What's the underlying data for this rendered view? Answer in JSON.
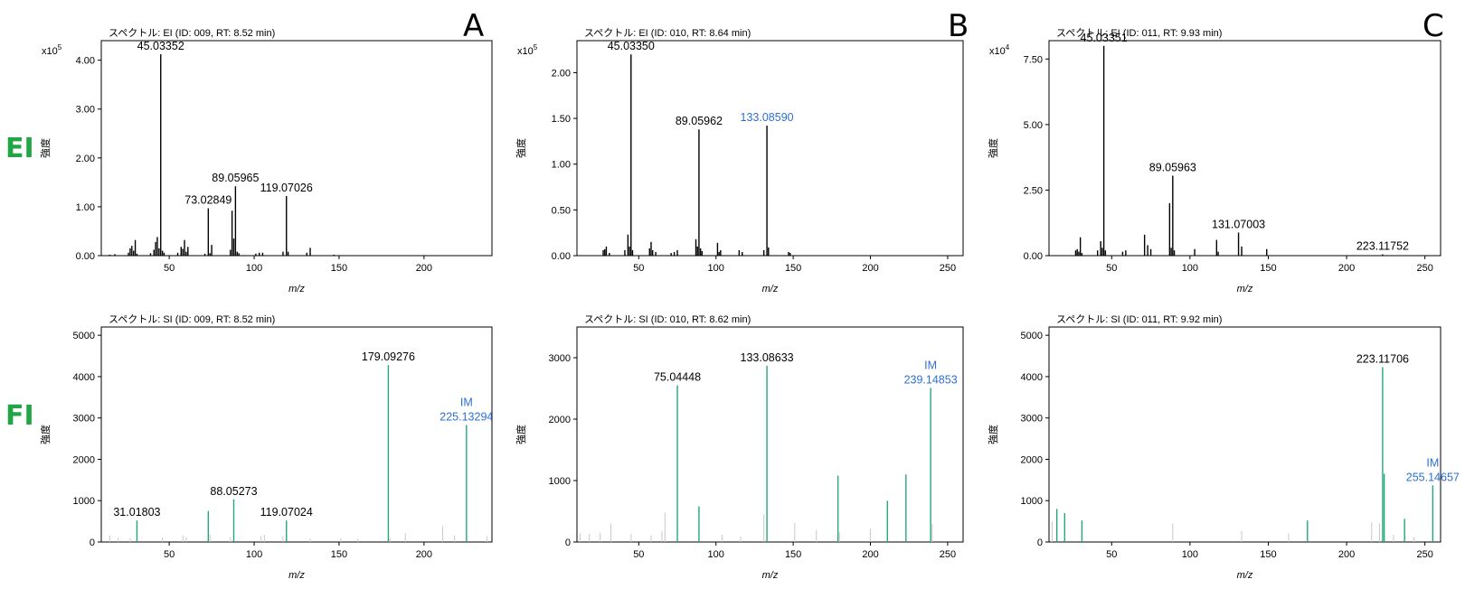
{
  "row_labels": [
    "EI",
    "FI"
  ],
  "panel_letters": [
    "A",
    "B",
    "C"
  ],
  "colors": {
    "ei_stick": "#000000",
    "fi_stick": "#26a77a",
    "minor_stick": "#c8c8c8",
    "im_label": "#2e6fd1",
    "row_label": "#22a645"
  },
  "chart_data": [
    {
      "type": "bar",
      "title": "スペクトル: EI (ID: 009, RT: 8.52 min)",
      "xlabel": "m/z",
      "ylabel": "強度",
      "multiplier": "x10",
      "multiplier_exp": "5",
      "xlim": [
        10,
        240
      ],
      "ylim": [
        0,
        4.4
      ],
      "xticks": [
        50,
        100,
        150,
        200
      ],
      "xtick_labels": [
        "50",
        "100",
        "150",
        "200"
      ],
      "yticks": [
        0,
        1,
        2,
        3,
        4
      ],
      "ytick_labels": [
        "0.00",
        "1.00",
        "2.00",
        "3.00",
        "4.00"
      ],
      "stick_color": "ei",
      "sticks": [
        [
          15,
          0.02
        ],
        [
          18,
          0.03
        ],
        [
          26,
          0.06
        ],
        [
          27,
          0.15
        ],
        [
          28,
          0.2
        ],
        [
          29,
          0.1
        ],
        [
          30,
          0.32
        ],
        [
          31,
          0.04
        ],
        [
          39,
          0.05
        ],
        [
          41,
          0.12
        ],
        [
          42,
          0.28
        ],
        [
          43,
          0.38
        ],
        [
          44,
          0.15
        ],
        [
          45,
          4.12
        ],
        [
          46,
          0.1
        ],
        [
          47,
          0.06
        ],
        [
          55,
          0.06
        ],
        [
          57,
          0.18
        ],
        [
          58,
          0.14
        ],
        [
          59,
          0.32
        ],
        [
          60,
          0.08
        ],
        [
          61,
          0.18
        ],
        [
          71,
          0.04
        ],
        [
          73,
          0.97
        ],
        [
          74,
          0.05
        ],
        [
          75,
          0.22
        ],
        [
          86,
          0.12
        ],
        [
          87,
          0.92
        ],
        [
          88,
          0.35
        ],
        [
          89,
          1.42
        ],
        [
          90,
          0.08
        ],
        [
          91,
          0.05
        ],
        [
          101,
          0.04
        ],
        [
          103,
          0.06
        ],
        [
          105,
          0.06
        ],
        [
          117,
          0.08
        ],
        [
          119,
          1.22
        ],
        [
          120,
          0.08
        ],
        [
          131,
          0.06
        ],
        [
          133,
          0.16
        ],
        [
          147,
          0.02
        ]
      ],
      "annotations": [
        {
          "x": 45,
          "y": 4.12,
          "text": "45.03352"
        },
        {
          "x": 73,
          "y": 0.97,
          "text": "73.02849"
        },
        {
          "x": 89,
          "y": 1.42,
          "text": "89.05965"
        },
        {
          "x": 119,
          "y": 1.22,
          "text": "119.07026"
        }
      ]
    },
    {
      "type": "bar",
      "title": "スペクトル: EI (ID: 010, RT: 8.64 min)",
      "xlabel": "m/z",
      "ylabel": "強度",
      "multiplier": "x10",
      "multiplier_exp": "5",
      "xlim": [
        10,
        260
      ],
      "ylim": [
        0,
        2.35
      ],
      "xticks": [
        50,
        100,
        150,
        200,
        250
      ],
      "xtick_labels": [
        "50",
        "100",
        "150",
        "200",
        "250"
      ],
      "yticks": [
        0,
        0.5,
        1,
        1.5,
        2
      ],
      "ytick_labels": [
        "0.00",
        "0.50",
        "1.00",
        "1.50",
        "2.00"
      ],
      "stick_color": "ei",
      "sticks": [
        [
          27,
          0.06
        ],
        [
          28,
          0.07
        ],
        [
          29,
          0.1
        ],
        [
          31,
          0.03
        ],
        [
          41,
          0.06
        ],
        [
          43,
          0.23
        ],
        [
          44,
          0.1
        ],
        [
          45,
          2.2
        ],
        [
          46,
          0.06
        ],
        [
          57,
          0.08
        ],
        [
          58,
          0.15
        ],
        [
          59,
          0.06
        ],
        [
          61,
          0.04
        ],
        [
          71,
          0.03
        ],
        [
          73,
          0.04
        ],
        [
          75,
          0.06
        ],
        [
          87,
          0.18
        ],
        [
          88,
          0.1
        ],
        [
          89,
          1.38
        ],
        [
          90,
          0.08
        ],
        [
          91,
          0.05
        ],
        [
          101,
          0.14
        ],
        [
          102,
          0.04
        ],
        [
          103,
          0.06
        ],
        [
          115,
          0.06
        ],
        [
          117,
          0.04
        ],
        [
          131,
          0.06
        ],
        [
          133,
          1.42
        ],
        [
          134,
          0.09
        ],
        [
          147,
          0.04
        ],
        [
          148,
          0.03
        ]
      ],
      "annotations": [
        {
          "x": 45,
          "y": 2.2,
          "text": "45.03350"
        },
        {
          "x": 89,
          "y": 1.38,
          "text": "89.05962"
        },
        {
          "x": 133,
          "y": 1.42,
          "text": "133.08590",
          "highlight": true
        }
      ]
    },
    {
      "type": "bar",
      "title": "スペクトル: EI (ID: 011, RT: 9.93 min)",
      "xlabel": "m/z",
      "ylabel": "強度",
      "multiplier": "x10",
      "multiplier_exp": "4",
      "xlim": [
        10,
        260
      ],
      "ylim": [
        0,
        8.2
      ],
      "xticks": [
        50,
        100,
        150,
        200,
        250
      ],
      "xtick_labels": [
        "50",
        "100",
        "150",
        "200",
        "250"
      ],
      "yticks": [
        0,
        2.5,
        5,
        7.5
      ],
      "ytick_labels": [
        "0.00",
        "2.50",
        "5.00",
        "7.50"
      ],
      "stick_color": "ei",
      "sticks": [
        [
          27,
          0.2
        ],
        [
          28,
          0.25
        ],
        [
          29,
          0.15
        ],
        [
          30,
          0.7
        ],
        [
          31,
          0.1
        ],
        [
          41,
          0.2
        ],
        [
          43,
          0.55
        ],
        [
          44,
          0.3
        ],
        [
          45,
          8.0
        ],
        [
          46,
          0.2
        ],
        [
          57,
          0.15
        ],
        [
          59,
          0.2
        ],
        [
          71,
          0.8
        ],
        [
          73,
          0.4
        ],
        [
          75,
          0.25
        ],
        [
          87,
          2.0
        ],
        [
          88,
          0.3
        ],
        [
          89,
          3.05
        ],
        [
          90,
          0.2
        ],
        [
          103,
          0.25
        ],
        [
          117,
          0.6
        ],
        [
          118,
          0.15
        ],
        [
          131,
          0.88
        ],
        [
          133,
          0.35
        ],
        [
          149,
          0.25
        ],
        [
          223,
          0.05
        ]
      ],
      "annotations": [
        {
          "x": 45,
          "y": 8.0,
          "text": "45.03351"
        },
        {
          "x": 89,
          "y": 3.05,
          "text": "89.05963"
        },
        {
          "x": 131,
          "y": 0.88,
          "text": "131.07003"
        },
        {
          "x": 223,
          "y": 0.05,
          "text": "223.11752"
        }
      ]
    },
    {
      "type": "bar",
      "title": "スペクトル: SI (ID: 009, RT: 8.52 min)",
      "xlabel": "m/z",
      "ylabel": "強度",
      "multiplier": "",
      "multiplier_exp": "",
      "xlim": [
        10,
        240
      ],
      "ylim": [
        0,
        5200
      ],
      "xticks": [
        50,
        100,
        150,
        200
      ],
      "xtick_labels": [
        "50",
        "100",
        "150",
        "200"
      ],
      "yticks": [
        0,
        1000,
        2000,
        3000,
        4000,
        5000
      ],
      "ytick_labels": [
        "0",
        "1000",
        "2000",
        "3000",
        "4000",
        "5000"
      ],
      "stick_color": "fi",
      "minor": [
        [
          15,
          150
        ],
        [
          20,
          100
        ],
        [
          27,
          90
        ],
        [
          46,
          110
        ],
        [
          58,
          160
        ],
        [
          60,
          120
        ],
        [
          74,
          180
        ],
        [
          86,
          120
        ],
        [
          104,
          140
        ],
        [
          106,
          170
        ],
        [
          117,
          140
        ],
        [
          133,
          80
        ],
        [
          151,
          90
        ],
        [
          161,
          70
        ],
        [
          180,
          100
        ],
        [
          189,
          220
        ],
        [
          211,
          380
        ],
        [
          218,
          160
        ],
        [
          237,
          140
        ]
      ],
      "sticks": [
        [
          31,
          520
        ],
        [
          73,
          750
        ],
        [
          88,
          1030
        ],
        [
          119,
          520
        ],
        [
          179,
          4280
        ],
        [
          225,
          2830
        ]
      ],
      "annotations": [
        {
          "x": 31,
          "y": 520,
          "text": "31.01803"
        },
        {
          "x": 88,
          "y": 1030,
          "text": "88.05273"
        },
        {
          "x": 119,
          "y": 520,
          "text": "119.07024"
        },
        {
          "x": 179,
          "y": 4280,
          "text": "179.09276"
        },
        {
          "x": 225,
          "y": 2830,
          "text": "225.13294",
          "tag": "IM",
          "highlight": true
        }
      ]
    },
    {
      "type": "bar",
      "title": "スペクトル: SI (ID: 010, RT: 8.62 min)",
      "xlabel": "m/z",
      "ylabel": "強度",
      "multiplier": "",
      "multiplier_exp": "",
      "xlim": [
        10,
        260
      ],
      "ylim": [
        0,
        3500
      ],
      "xticks": [
        50,
        100,
        150,
        200,
        250
      ],
      "xtick_labels": [
        "50",
        "100",
        "150",
        "200",
        "250"
      ],
      "yticks": [
        0,
        1000,
        2000,
        3000
      ],
      "ytick_labels": [
        "0",
        "1000",
        "2000",
        "3000"
      ],
      "stick_color": "fi",
      "minor": [
        [
          12,
          140
        ],
        [
          18,
          130
        ],
        [
          25,
          150
        ],
        [
          32,
          300
        ],
        [
          45,
          130
        ],
        [
          58,
          110
        ],
        [
          65,
          180
        ],
        [
          67,
          480
        ],
        [
          104,
          120
        ],
        [
          116,
          90
        ],
        [
          131,
          450
        ],
        [
          151,
          310
        ],
        [
          165,
          200
        ],
        [
          180,
          160
        ],
        [
          200,
          220
        ],
        [
          240,
          300
        ]
      ],
      "sticks": [
        [
          75,
          2550
        ],
        [
          89,
          580
        ],
        [
          133,
          2870
        ],
        [
          179,
          1080
        ],
        [
          211,
          670
        ],
        [
          223,
          1100
        ],
        [
          239,
          2510
        ]
      ],
      "annotations": [
        {
          "x": 75,
          "y": 2550,
          "text": "75.04448"
        },
        {
          "x": 133,
          "y": 2870,
          "text": "133.08633"
        },
        {
          "x": 239,
          "y": 2510,
          "text": "239.14853",
          "tag": "IM",
          "highlight": true
        }
      ]
    },
    {
      "type": "bar",
      "title": "スペクトル: SI (ID: 011, RT: 9.92 min)",
      "xlabel": "m/z",
      "ylabel": "強度",
      "multiplier": "",
      "multiplier_exp": "",
      "xlim": [
        10,
        260
      ],
      "ylim": [
        0,
        5200
      ],
      "xticks": [
        50,
        100,
        150,
        200,
        250
      ],
      "xtick_labels": [
        "50",
        "100",
        "150",
        "200",
        "250"
      ],
      "yticks": [
        0,
        1000,
        2000,
        3000,
        4000,
        5000
      ],
      "ytick_labels": [
        "0",
        "1000",
        "2000",
        "3000",
        "4000",
        "5000"
      ],
      "stick_color": "fi",
      "minor": [
        [
          12,
          500
        ],
        [
          89,
          450
        ],
        [
          133,
          270
        ],
        [
          163,
          210
        ],
        [
          216,
          480
        ],
        [
          221,
          450
        ],
        [
          230,
          180
        ],
        [
          243,
          120
        ]
      ],
      "sticks": [
        [
          15,
          800
        ],
        [
          20,
          700
        ],
        [
          31,
          520
        ],
        [
          175,
          520
        ],
        [
          223,
          4230
        ],
        [
          224,
          1650
        ],
        [
          237,
          560
        ],
        [
          255,
          1370
        ]
      ],
      "annotations": [
        {
          "x": 223,
          "y": 4230,
          "text": "223.11706"
        },
        {
          "x": 255,
          "y": 1370,
          "text": "255.14657",
          "tag": "IM",
          "highlight": true
        }
      ]
    }
  ]
}
